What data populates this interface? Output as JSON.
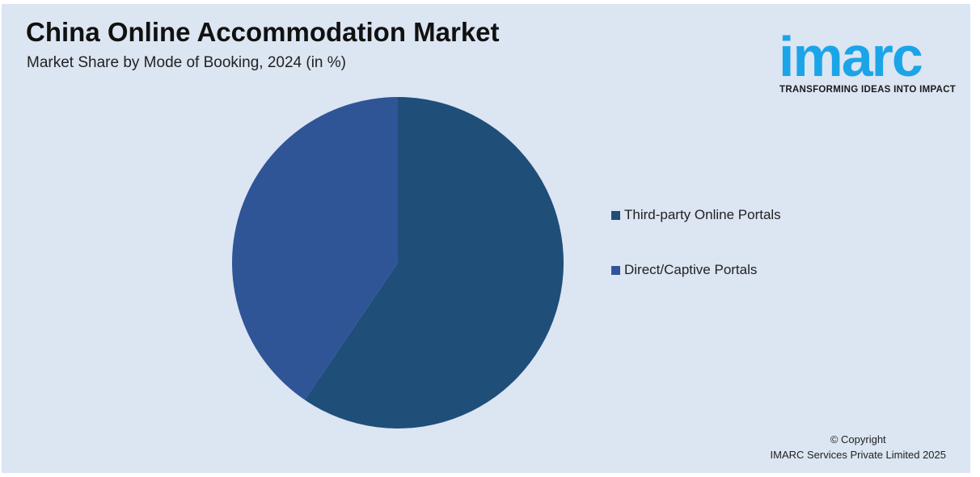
{
  "header": {
    "title": "China Online Accommodation Market",
    "subtitle": "Market Share by Mode of Booking, 2024 (in %)"
  },
  "logo": {
    "wordmark": "imarc",
    "tagline": "TRANSFORMING IDEAS INTO IMPACT",
    "color": "#1ba5e8"
  },
  "chart_data": {
    "type": "pie",
    "title": "China Online Accommodation Market",
    "subtitle": "Market Share by Mode of Booking, 2024 (in %)",
    "categories": [
      "Third-party Online Portals",
      "Direct/Captive Portals"
    ],
    "values": [
      59.5,
      40.5
    ],
    "colors": [
      "#1f4e79",
      "#2f5597"
    ],
    "legend_placement": "right"
  },
  "footer": {
    "copyright_line1": "© Copyright",
    "copyright_line2": "IMARC Services Private Limited 2025"
  }
}
